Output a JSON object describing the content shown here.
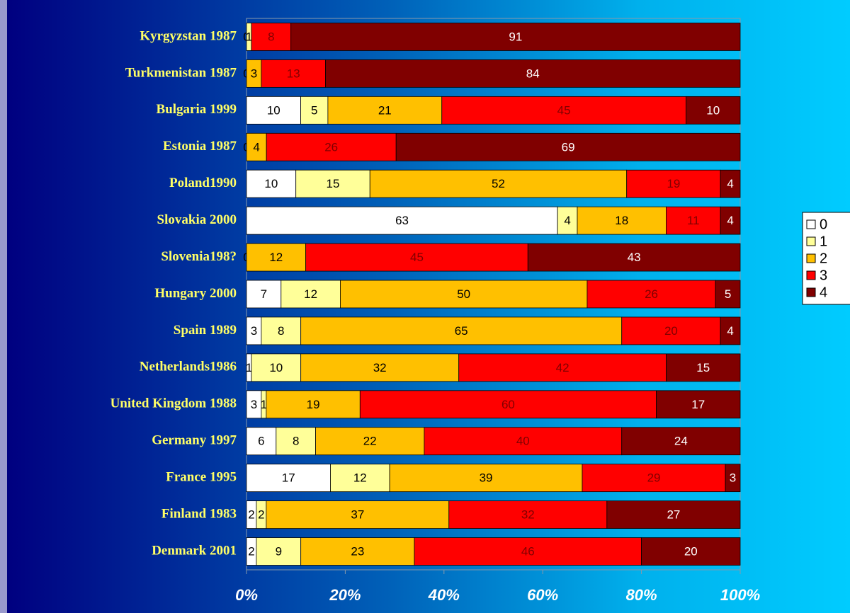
{
  "chart_data": {
    "type": "stacked_percent_barh",
    "categories": [
      "Kyrgyzstan 1987",
      "Turkmenistan 1987",
      "Bulgaria 1999",
      "Estonia 1987",
      "Poland1990",
      "Slovakia 2000",
      "Slovenia198?",
      "Hungary 2000",
      "Spain 1989",
      "Netherlands1986",
      "United Kingdom 1988",
      "Germany 1997",
      "France 1995",
      "Finland 1983",
      "Denmark 2001"
    ],
    "series": [
      {
        "name": "0",
        "color": "#ffffff",
        "values": [
          0,
          0,
          10,
          0,
          10,
          63,
          0,
          7,
          3,
          1,
          3,
          6,
          17,
          2,
          2
        ]
      },
      {
        "name": "1",
        "color": "#ffff99",
        "values": [
          1,
          null,
          5,
          null,
          15,
          4,
          null,
          12,
          8,
          10,
          1,
          8,
          12,
          2,
          9
        ]
      },
      {
        "name": "2",
        "color": "#ffc000",
        "values": [
          null,
          3,
          21,
          4,
          52,
          18,
          12,
          50,
          65,
          32,
          19,
          22,
          39,
          37,
          23
        ]
      },
      {
        "name": "3",
        "color": "#ff0000",
        "values": [
          8,
          13,
          45,
          26,
          19,
          11,
          45,
          26,
          20,
          42,
          60,
          40,
          29,
          32,
          46
        ]
      },
      {
        "name": "4",
        "color": "#800000",
        "values": [
          91,
          84,
          10,
          69,
          4,
          4,
          43,
          5,
          4,
          15,
          17,
          24,
          3,
          27,
          20
        ]
      }
    ],
    "xlim": [
      0,
      100
    ],
    "xticks": [
      {
        "value": 0,
        "label": "0%"
      },
      {
        "value": 20,
        "label": "20%"
      },
      {
        "value": 40,
        "label": "40%"
      },
      {
        "value": 60,
        "label": "60%"
      },
      {
        "value": 80,
        "label": "80%"
      },
      {
        "value": 100,
        "label": "100%"
      }
    ],
    "legend": "right"
  }
}
